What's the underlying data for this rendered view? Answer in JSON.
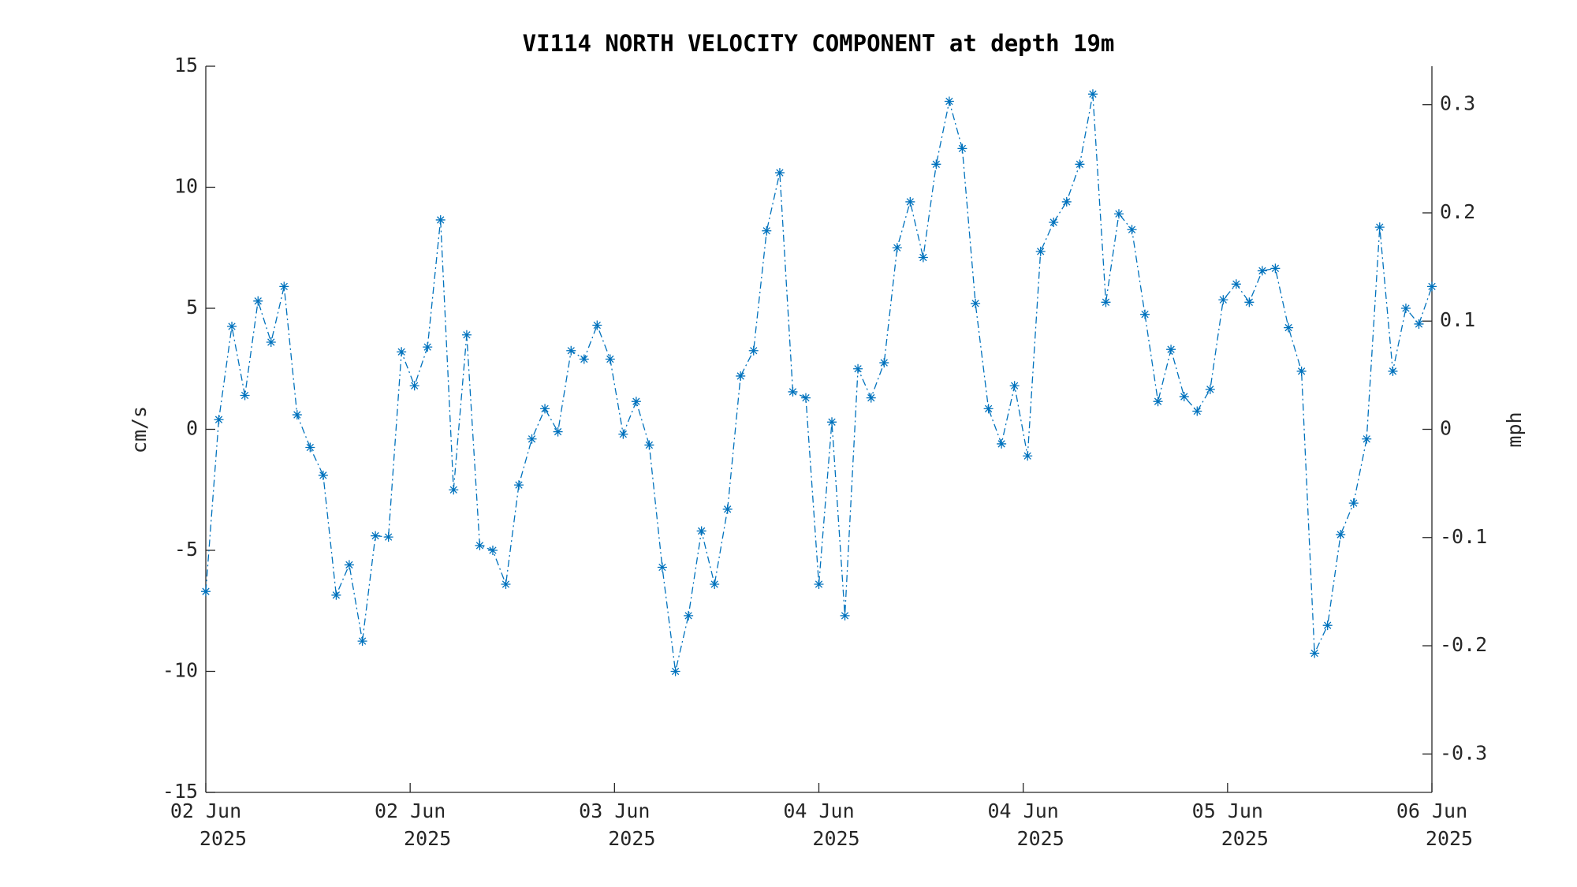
{
  "chart_data": {
    "type": "line",
    "title": "VI114 NORTH VELOCITY COMPONENT at depth 19m",
    "y_label": "cm/s",
    "y2_label": "mph",
    "xlim": [
      0,
      96
    ],
    "xticks": [
      {
        "value": 0,
        "label": [
          "02 Jun",
          "2025"
        ]
      },
      {
        "value": 16,
        "label": [
          "02 Jun",
          "2025"
        ]
      },
      {
        "value": 32,
        "label": [
          "03 Jun",
          "2025"
        ]
      },
      {
        "value": 48,
        "label": [
          "04 Jun",
          "2025"
        ]
      },
      {
        "value": 64,
        "label": [
          "04 Jun",
          "2025"
        ]
      },
      {
        "value": 80,
        "label": [
          "05 Jun",
          "2025"
        ]
      },
      {
        "value": 96,
        "label": [
          "06 Jun",
          "2025"
        ]
      }
    ],
    "ylim": [
      -15,
      15
    ],
    "yticks": [
      -15,
      -10,
      -5,
      0,
      5,
      10,
      15
    ],
    "y2lim": [
      -0.3355,
      0.3355
    ],
    "y2ticks": [
      -0.3,
      -0.2,
      -0.1,
      0,
      0.1,
      0.2,
      0.3
    ],
    "grid": false,
    "x": [
      0,
      1.02,
      2.04,
      3.06,
      4.09,
      5.11,
      6.13,
      7.15,
      8.17,
      9.19,
      10.21,
      11.23,
      12.26,
      13.28,
      14.3,
      15.32,
      16.34,
      17.36,
      18.38,
      19.4,
      20.43,
      21.45,
      22.47,
      23.49,
      24.51,
      25.53,
      26.55,
      27.57,
      28.6,
      29.62,
      30.64,
      31.66,
      32.68,
      33.7,
      34.72,
      35.74,
      36.77,
      37.79,
      38.81,
      39.83,
      40.85,
      41.87,
      42.89,
      43.91,
      44.94,
      45.96,
      46.98,
      48,
      49.02,
      50.04,
      51.06,
      52.09,
      53.11,
      54.13,
      55.15,
      56.17,
      57.19,
      58.21,
      59.23,
      60.26,
      61.28,
      62.3,
      63.32,
      64.34,
      65.36,
      66.38,
      67.4,
      68.43,
      69.45,
      70.47,
      71.49,
      72.51,
      73.53,
      74.55,
      75.57,
      76.6,
      77.62,
      78.64,
      79.66,
      80.68,
      81.7,
      82.72,
      83.74,
      84.77,
      85.79,
      86.81,
      87.83,
      88.85,
      89.87,
      90.89,
      91.91,
      92.94,
      93.96,
      94.98,
      96
    ],
    "series": [
      {
        "color": "#0072bd",
        "values": [
          -6.7,
          0.4,
          4.25,
          1.4,
          5.3,
          3.6,
          5.9,
          0.6,
          -0.75,
          -1.9,
          -6.85,
          -5.6,
          -8.75,
          -4.4,
          -4.45,
          3.2,
          1.8,
          3.4,
          8.65,
          -2.5,
          3.9,
          -4.8,
          -5.0,
          -6.4,
          -2.3,
          -0.4,
          0.85,
          -0.1,
          3.25,
          2.9,
          4.3,
          2.9,
          -0.2,
          1.15,
          -0.65,
          -5.7,
          -10.0,
          -7.7,
          -4.2,
          -6.4,
          -3.3,
          2.2,
          3.25,
          8.2,
          10.6,
          1.55,
          1.3,
          -6.4,
          0.3,
          -7.7,
          2.5,
          1.3,
          2.75,
          7.5,
          9.4,
          7.1,
          10.95,
          13.55,
          11.6,
          5.2,
          0.85,
          -0.6,
          1.8,
          -1.1,
          7.35,
          8.55,
          9.4,
          10.95,
          13.85,
          5.25,
          8.9,
          8.25,
          4.75,
          1.15,
          3.3,
          1.35,
          0.75,
          1.65,
          5.35,
          6.0,
          5.25,
          6.55,
          6.65,
          4.2,
          2.4,
          -9.25,
          -8.1,
          -4.35,
          -3.05,
          -0.4,
          8.35,
          2.4,
          5.0,
          4.35,
          5.9
        ]
      }
    ]
  }
}
